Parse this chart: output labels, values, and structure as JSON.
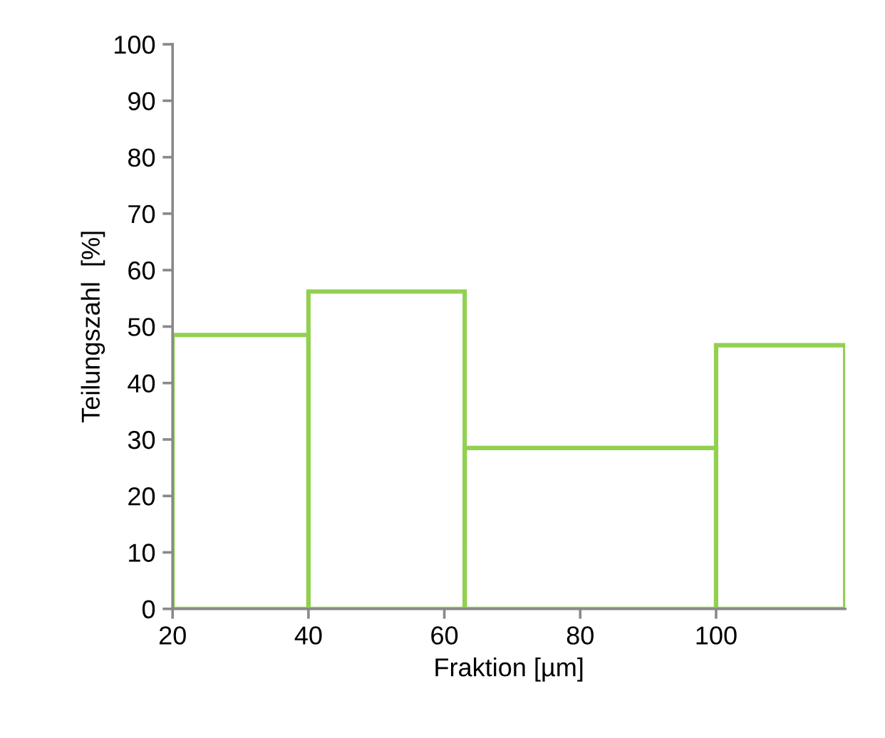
{
  "chart_data": {
    "type": "histogram",
    "xlabel": "Fraktion [µm]",
    "ylabel": "Teilungszahl  [%]",
    "bins": [
      20,
      40,
      63,
      100,
      119
    ],
    "values": [
      48.5,
      56.2,
      28.5,
      46.7
    ],
    "color": "#92d050",
    "xlim": [
      20,
      119
    ],
    "xticks": [
      20,
      40,
      60,
      80,
      100
    ],
    "ylim": [
      0,
      100
    ],
    "yticks": [
      0,
      10,
      20,
      30,
      40,
      50,
      60,
      70,
      80,
      90,
      100
    ],
    "grid": false,
    "legend": false
  }
}
